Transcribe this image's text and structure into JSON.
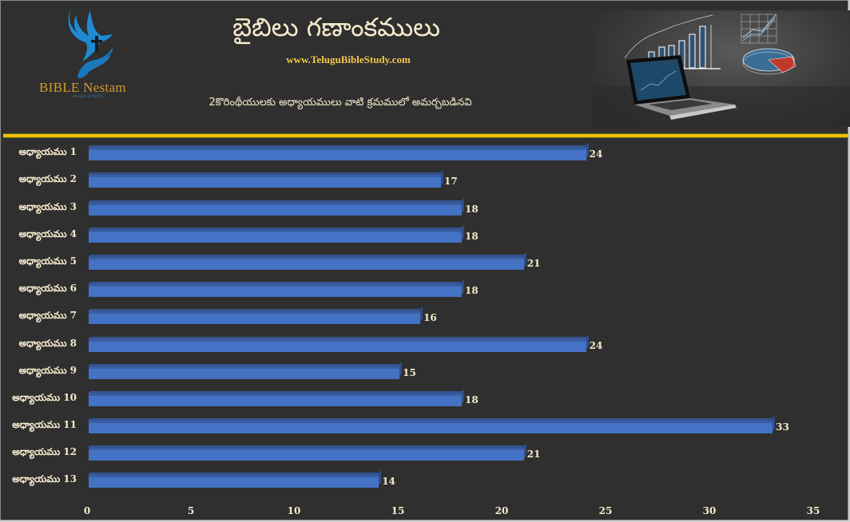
{
  "header": {
    "logo_name": "BIBLE Nestam",
    "logo_tagline": "disciples of JESUS",
    "title": "బైబిలు గణాంకములు",
    "website": "www.TeluguBibleStudy.com",
    "subtitle": "2కొరింథీయులకు అధ్యాయములు వాటి క్రమములో అమర్చబడినవి"
  },
  "colors": {
    "background": "#2f2f2f",
    "bar": "#4472c4",
    "divider": "#f2be00",
    "label_text": "#f6ebcc",
    "website_text": "#f2c84b",
    "logo_text": "#d29a2a",
    "logo_icon": "#1f8ad2"
  },
  "chart_data": {
    "type": "bar",
    "orientation": "horizontal",
    "title": "2కొరింథీయులకు అధ్యాయములు వాటి క్రమములో అమర్చబడినవి",
    "categories": [
      "అధ్యాయము 1",
      "అధ్యాయము 2",
      "అధ్యాయము 3",
      "అధ్యాయము 4",
      "అధ్యాయము 5",
      "అధ్యాయము 6",
      "అధ్యాయము 7",
      "అధ్యాయము 8",
      "అధ్యాయము 9",
      "అధ్యాయము 10",
      "అధ్యాయము 11",
      "అధ్యాయము 12",
      "అధ్యాయము 13"
    ],
    "values": [
      24,
      17,
      18,
      18,
      21,
      18,
      16,
      24,
      15,
      18,
      33,
      21,
      14
    ],
    "xlabel": "",
    "ylabel": "",
    "xlim": [
      0,
      35
    ],
    "xticks": [
      "0",
      "5",
      "10",
      "15",
      "20",
      "25",
      "30",
      "35"
    ],
    "grid": false,
    "legend": "none",
    "data_labels": true
  }
}
